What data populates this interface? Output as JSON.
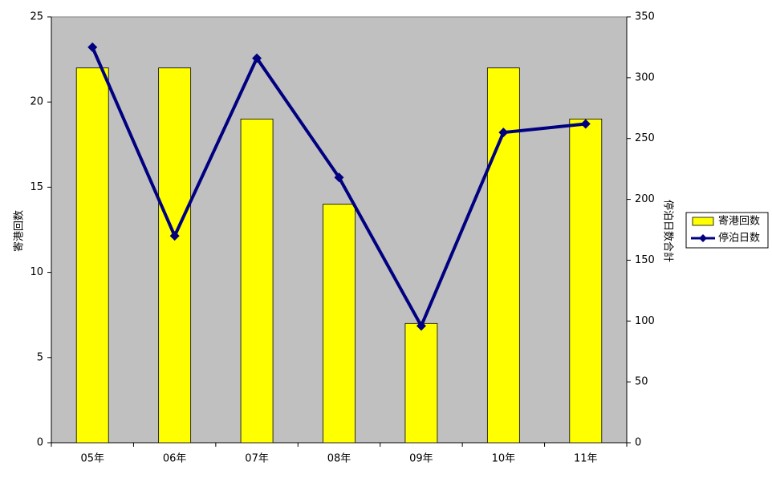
{
  "chart_data": {
    "type": "bar",
    "categories": [
      "05年",
      "06年",
      "07年",
      "08年",
      "09年",
      "10年",
      "11年"
    ],
    "y_label": "寄港回数",
    "y2_label": "停泊日数合計",
    "series": [
      {
        "name": "寄港回数",
        "type": "bar",
        "color": "#ffff00",
        "values": [
          22,
          22,
          19,
          14,
          7,
          22,
          19
        ]
      },
      {
        "name": "停泊日数",
        "type": "line",
        "axis": "y2",
        "color": "#000080",
        "values": [
          325,
          170,
          316,
          218,
          96,
          255,
          262
        ]
      }
    ],
    "ylim": [
      0,
      25
    ],
    "yticks": [
      0,
      5,
      10,
      15,
      20,
      25
    ],
    "y2lim": [
      0,
      350
    ],
    "y2ticks": [
      0,
      50,
      100,
      150,
      200,
      250,
      300,
      350
    ],
    "grid": false,
    "legend": "right",
    "plot_background": "#c0c0c0"
  }
}
